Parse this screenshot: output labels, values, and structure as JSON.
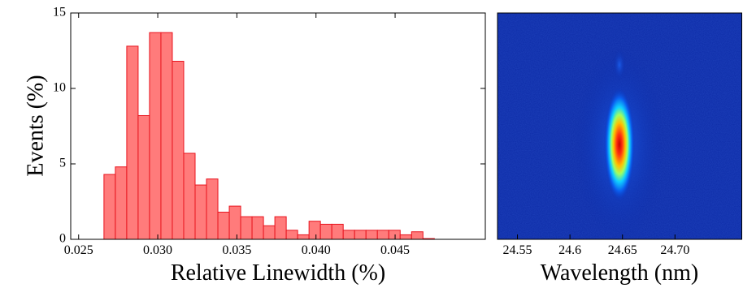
{
  "chart_data": [
    {
      "type": "histogram",
      "x_label": "Relative Linewidth (%)",
      "y_label": "Events (%)",
      "bins": [
        0.0266,
        0.02732,
        0.02804,
        0.02876,
        0.02948,
        0.0302,
        0.03092,
        0.03164,
        0.03236,
        0.03308,
        0.0338,
        0.03452,
        0.03524,
        0.03596,
        0.03668,
        0.0374,
        0.03812,
        0.03884,
        0.03956,
        0.04028,
        0.041,
        0.04172,
        0.04244,
        0.04316,
        0.04388,
        0.0446,
        0.04532,
        0.04604,
        0.04676,
        0.04748
      ],
      "values": [
        4.3,
        4.8,
        12.8,
        8.2,
        13.7,
        13.7,
        11.8,
        5.7,
        3.6,
        4.0,
        1.8,
        2.2,
        1.5,
        1.5,
        0.9,
        1.5,
        0.6,
        0.3,
        1.2,
        1.0,
        1.0,
        0.6,
        0.6,
        0.6,
        0.6,
        0.6,
        0.3,
        0.5,
        0.05
      ],
      "color": "#ff7b7b",
      "edge_color": "#e8141e",
      "xlim": [
        0.0245,
        0.0507
      ],
      "ylim": [
        0,
        15
      ],
      "xticks": [
        {
          "value": 0.025,
          "label": "0.025"
        },
        {
          "value": 0.03,
          "label": "0.030"
        },
        {
          "value": 0.035,
          "label": "0.035"
        },
        {
          "value": 0.04,
          "label": "0.040"
        },
        {
          "value": 0.045,
          "label": "0.045"
        }
      ],
      "yticks": [
        0,
        5,
        10,
        15
      ]
    },
    {
      "type": "heatmap",
      "x_label": "Wavelength (nm)",
      "xlim": [
        24.531,
        24.764
      ],
      "xticks": [
        24.55,
        24.6,
        24.65,
        {
          "value": 24.7,
          "label": "24.70"
        }
      ]
    }
  ]
}
